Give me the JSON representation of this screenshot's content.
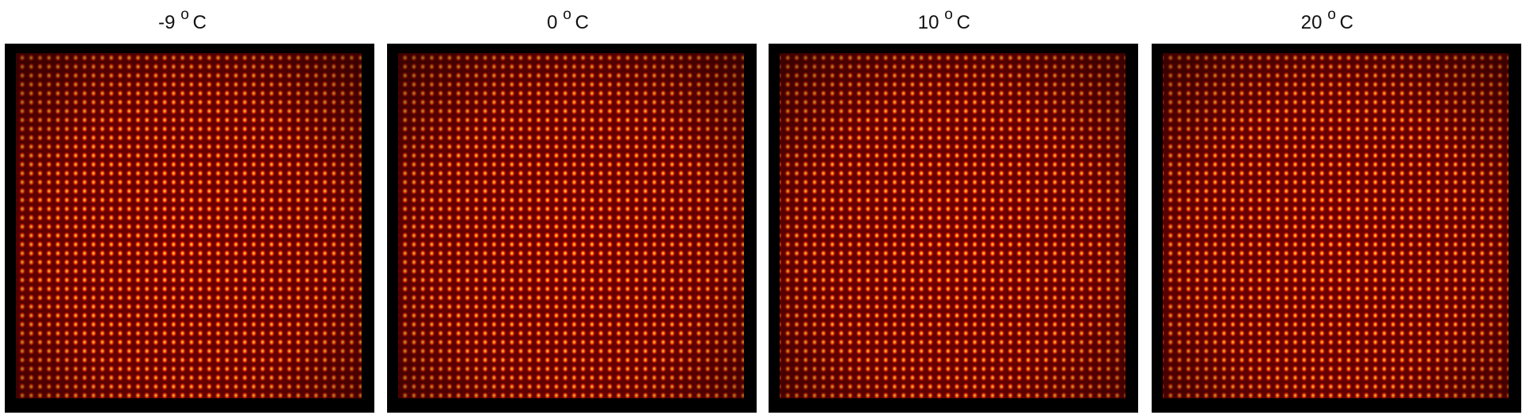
{
  "panels": [
    {
      "value": "-9",
      "degree": "o",
      "unit": "C"
    },
    {
      "value": "0",
      "degree": "o",
      "unit": "C"
    },
    {
      "value": "10",
      "degree": "o",
      "unit": "C"
    },
    {
      "value": "20",
      "degree": "o",
      "unit": "C"
    }
  ]
}
